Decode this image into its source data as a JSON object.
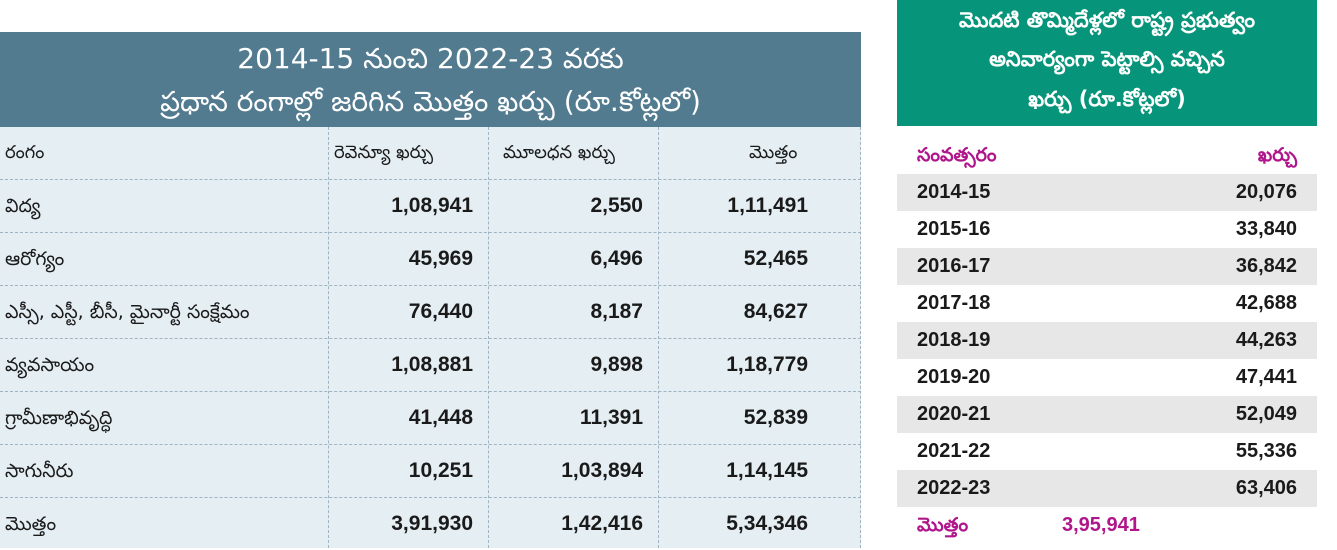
{
  "left_table": {
    "title_line1": "2014-15 నుంచి 2022-23 వరకు",
    "title_line2": "ప్రధాన రంగాల్లో జరిగిన మొత్తం ఖర్చు (రూ.కోట్లలో)",
    "headers": [
      "రంగం",
      "రెవెన్యూ ఖర్చు",
      "మూలధన ఖర్చు",
      "మొత్తం"
    ],
    "rows": [
      {
        "sector": "విద్య",
        "revenue": "1,08,941",
        "capital": "2,550",
        "total": "1,11,491"
      },
      {
        "sector": "ఆరోగ్యం",
        "revenue": "45,969",
        "capital": "6,496",
        "total": "52,465"
      },
      {
        "sector": "ఎస్సీ, ఎస్టీ, బీసీ, మైనార్టీ సంక్షేమం",
        "revenue": "76,440",
        "capital": "8,187",
        "total": "84,627"
      },
      {
        "sector": "వ్యవసాయం",
        "revenue": "1,08,881",
        "capital": "9,898",
        "total": "1,18,779"
      },
      {
        "sector": "గ్రామీణాభివృద్ధి",
        "revenue": "41,448",
        "capital": "11,391",
        "total": "52,839"
      },
      {
        "sector": "సాగునీరు",
        "revenue": "10,251",
        "capital": "1,03,894",
        "total": "1,14,145"
      },
      {
        "sector": "మొత్తం",
        "revenue": "3,91,930",
        "capital": "1,42,416",
        "total": "5,34,346"
      }
    ]
  },
  "right_table": {
    "title_line1": "మొదటి తొమ్మిదేళ్లలో రాష్ట్ర ప్రభుత్వం",
    "title_line2": "అనివార్యంగా పెట్టాల్సి వచ్చిన",
    "title_line3": "ఖర్చు (రూ.కోట్లలో)",
    "header_year": "సంవత్సరం",
    "header_amount": "ఖర్చు",
    "rows": [
      {
        "year": "2014-15",
        "amount": "20,076"
      },
      {
        "year": "2015-16",
        "amount": "33,840"
      },
      {
        "year": "2016-17",
        "amount": "36,842"
      },
      {
        "year": "2017-18",
        "amount": "42,688"
      },
      {
        "year": "2018-19",
        "amount": "44,263"
      },
      {
        "year": "2019-20",
        "amount": "47,441"
      },
      {
        "year": "2020-21",
        "amount": "52,049"
      },
      {
        "year": "2021-22",
        "amount": "55,336"
      },
      {
        "year": "2022-23",
        "amount": "63,406"
      }
    ],
    "total_label": "మొత్తం",
    "total_amount": "3,95,941"
  },
  "colors": {
    "left_header_bg": "#527b90",
    "left_body_bg": "#e4eef3",
    "right_header_bg": "#06957a",
    "right_accent": "#b0168c",
    "right_stripe": "#e7e7e7"
  }
}
